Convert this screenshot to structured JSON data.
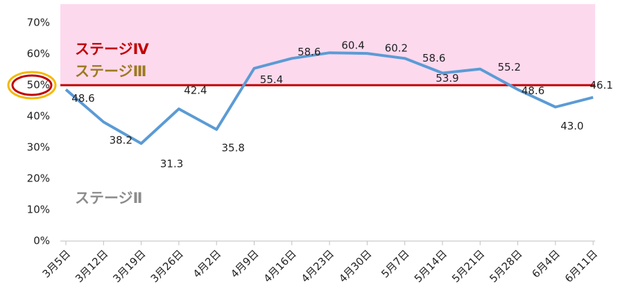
{
  "chart_data": {
    "type": "line",
    "categories": [
      "3月5日",
      "3月12日",
      "3月19日",
      "3月26日",
      "4月2日",
      "4月9日",
      "4月16日",
      "4月23日",
      "4月30日",
      "5月7日",
      "5月14日",
      "5月21日",
      "5月28日",
      "6月4日",
      "6月11日"
    ],
    "series": [
      {
        "color": "#5b9bd5",
        "values": [
          48.6,
          38.2,
          31.3,
          42.4,
          35.8,
          55.4,
          58.6,
          60.4,
          60.2,
          58.6,
          53.9,
          55.2,
          48.6,
          43.0,
          46.1
        ],
        "value_labels": [
          "48.6",
          "38.2",
          "31.3",
          "42.4",
          "35.8",
          "55.4",
          "58.6",
          "60.4",
          "60.2",
          "58.6",
          "53.9",
          "55.2",
          "48.6",
          "43.0",
          "46.1"
        ]
      }
    ],
    "ylim": [
      0,
      76
    ],
    "yticks": [
      {
        "value": 0,
        "label": "0%"
      },
      {
        "value": 10,
        "label": "10%"
      },
      {
        "value": 20,
        "label": "20%"
      },
      {
        "value": 30,
        "label": "30%"
      },
      {
        "value": 40,
        "label": "40%"
      },
      {
        "value": 50,
        "label": "50%"
      },
      {
        "value": 60,
        "label": "60%"
      },
      {
        "value": 70,
        "label": "70%"
      }
    ],
    "band": {
      "from": 50,
      "to": 76,
      "color": "#fdd9ee"
    },
    "threshold": {
      "value": 50,
      "color": "#c00000"
    },
    "annotations": [
      {
        "text": "ステージⅣ",
        "color": "#c00000"
      },
      {
        "text": "ステージⅢ",
        "color": "#9c7a1e"
      },
      {
        "text": "ステージⅡ",
        "color": "#8c8c8c"
      }
    ]
  }
}
